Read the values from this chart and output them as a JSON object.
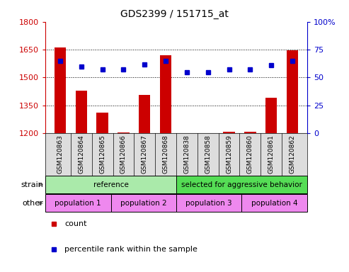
{
  "title": "GDS2399 / 151715_at",
  "samples": [
    "GSM120863",
    "GSM120864",
    "GSM120865",
    "GSM120866",
    "GSM120867",
    "GSM120868",
    "GSM120838",
    "GSM120858",
    "GSM120859",
    "GSM120860",
    "GSM120861",
    "GSM120862"
  ],
  "counts": [
    1660,
    1430,
    1310,
    1205,
    1405,
    1620,
    1202,
    1200,
    1210,
    1210,
    1390,
    1645
  ],
  "percentiles": [
    65,
    60,
    57,
    57,
    62,
    65,
    55,
    55,
    57,
    57,
    61,
    65
  ],
  "left_ylim": [
    1200,
    1800
  ],
  "left_yticks": [
    1200,
    1350,
    1500,
    1650,
    1800
  ],
  "right_ylim": [
    0,
    100
  ],
  "right_yticks": [
    0,
    25,
    50,
    75,
    100
  ],
  "bar_color": "#cc0000",
  "dot_color": "#0000cc",
  "bar_width": 0.55,
  "strain_groups": [
    {
      "label": "reference",
      "start": 0,
      "end": 6,
      "color": "#aaeaaa"
    },
    {
      "label": "selected for aggressive behavior",
      "start": 6,
      "end": 12,
      "color": "#55dd55"
    }
  ],
  "other_groups": [
    {
      "label": "population 1",
      "start": 0,
      "end": 3,
      "color": "#ee88ee"
    },
    {
      "label": "population 2",
      "start": 3,
      "end": 6,
      "color": "#ee88ee"
    },
    {
      "label": "population 3",
      "start": 6,
      "end": 9,
      "color": "#ee88ee"
    },
    {
      "label": "population 4",
      "start": 9,
      "end": 12,
      "color": "#ee88ee"
    }
  ],
  "legend_count_color": "#cc0000",
  "legend_pct_color": "#0000cc",
  "left_axis_color": "#cc0000",
  "right_axis_color": "#0000cc",
  "xtick_bg": "#dddddd",
  "arrow_color": "#888888"
}
